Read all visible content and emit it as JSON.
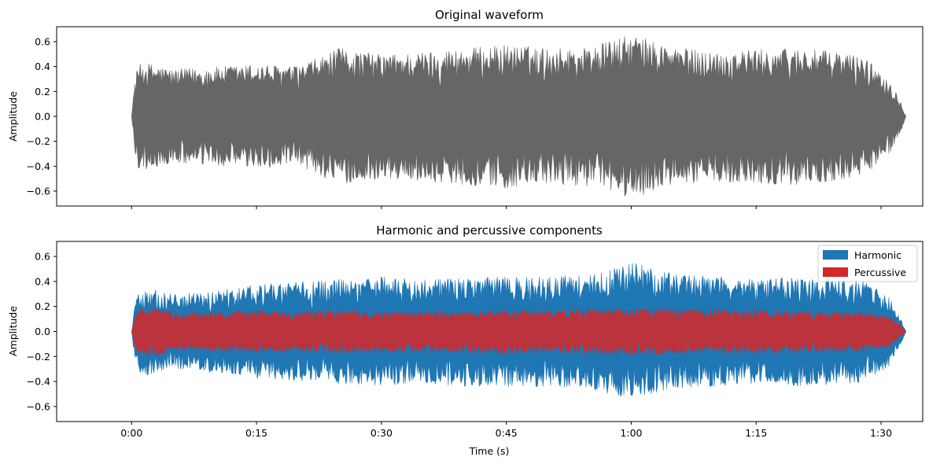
{
  "chart_data": [
    {
      "type": "area",
      "title": "Original waveform",
      "xlabel": "",
      "ylabel": "Amplitude",
      "ylim": [
        -0.72,
        0.72
      ],
      "xlim": [
        -9,
        95
      ],
      "y_ticks": [
        -0.6,
        -0.4,
        -0.2,
        0.0,
        0.2,
        0.4,
        0.6
      ],
      "y_tick_labels": [
        "−0.6",
        "−0.4",
        "−0.2",
        "0.0",
        "0.2",
        "0.4",
        "0.6"
      ],
      "x_ticks_seconds": [
        0,
        15,
        30,
        45,
        60,
        75,
        90
      ],
      "duration_seconds": 93,
      "grid": false,
      "series": [
        {
          "color": "#666666",
          "envelope": [
            {
              "t": 0.0,
              "amp": 0.0
            },
            {
              "t": 0.4,
              "amp": 0.3
            },
            {
              "t": 0.8,
              "amp": 0.42
            },
            {
              "t": 2.0,
              "amp": 0.43
            },
            {
              "t": 5.0,
              "amp": 0.38
            },
            {
              "t": 10.0,
              "amp": 0.4
            },
            {
              "t": 15.0,
              "amp": 0.42
            },
            {
              "t": 20.0,
              "amp": 0.4
            },
            {
              "t": 25.0,
              "amp": 0.55
            },
            {
              "t": 30.0,
              "amp": 0.5
            },
            {
              "t": 35.0,
              "amp": 0.52
            },
            {
              "t": 40.0,
              "amp": 0.55
            },
            {
              "t": 45.0,
              "amp": 0.58
            },
            {
              "t": 50.0,
              "amp": 0.55
            },
            {
              "t": 55.0,
              "amp": 0.56
            },
            {
              "t": 60.0,
              "amp": 0.66
            },
            {
              "t": 65.0,
              "amp": 0.56
            },
            {
              "t": 70.0,
              "amp": 0.52
            },
            {
              "t": 75.0,
              "amp": 0.54
            },
            {
              "t": 80.0,
              "amp": 0.55
            },
            {
              "t": 85.0,
              "amp": 0.52
            },
            {
              "t": 88.0,
              "amp": 0.48
            },
            {
              "t": 91.0,
              "amp": 0.3
            },
            {
              "t": 92.5,
              "amp": 0.1
            },
            {
              "t": 93.0,
              "amp": 0.0
            }
          ]
        }
      ]
    },
    {
      "type": "area",
      "title": "Harmonic and percussive components",
      "xlabel": "Time (s)",
      "ylabel": "Amplitude",
      "ylim": [
        -0.72,
        0.72
      ],
      "xlim": [
        -9,
        95
      ],
      "y_ticks": [
        -0.6,
        -0.4,
        -0.2,
        0.0,
        0.2,
        0.4,
        0.6
      ],
      "y_tick_labels": [
        "−0.6",
        "−0.4",
        "−0.2",
        "0.0",
        "0.2",
        "0.4",
        "0.6"
      ],
      "x_ticks_seconds": [
        0,
        15,
        30,
        45,
        60,
        75,
        90
      ],
      "x_tick_labels": [
        "0:00",
        "0:15",
        "0:30",
        "0:45",
        "1:00",
        "1:15",
        "1:30"
      ],
      "duration_seconds": 93,
      "grid": false,
      "legend_position": "top-right",
      "series": [
        {
          "name": "Harmonic",
          "color": "#1f77b4",
          "envelope": [
            {
              "t": 0.0,
              "amp": 0.0
            },
            {
              "t": 0.4,
              "amp": 0.25
            },
            {
              "t": 0.8,
              "amp": 0.33
            },
            {
              "t": 2.0,
              "amp": 0.35
            },
            {
              "t": 5.0,
              "amp": 0.3
            },
            {
              "t": 10.0,
              "amp": 0.33
            },
            {
              "t": 15.0,
              "amp": 0.38
            },
            {
              "t": 20.0,
              "amp": 0.4
            },
            {
              "t": 25.0,
              "amp": 0.42
            },
            {
              "t": 30.0,
              "amp": 0.44
            },
            {
              "t": 35.0,
              "amp": 0.42
            },
            {
              "t": 40.0,
              "amp": 0.44
            },
            {
              "t": 45.0,
              "amp": 0.45
            },
            {
              "t": 50.0,
              "amp": 0.44
            },
            {
              "t": 55.0,
              "amp": 0.46
            },
            {
              "t": 60.0,
              "amp": 0.56
            },
            {
              "t": 65.0,
              "amp": 0.46
            },
            {
              "t": 70.0,
              "amp": 0.44
            },
            {
              "t": 75.0,
              "amp": 0.42
            },
            {
              "t": 80.0,
              "amp": 0.44
            },
            {
              "t": 85.0,
              "amp": 0.43
            },
            {
              "t": 88.0,
              "amp": 0.4
            },
            {
              "t": 91.0,
              "amp": 0.28
            },
            {
              "t": 92.5,
              "amp": 0.08
            },
            {
              "t": 93.0,
              "amp": 0.0
            }
          ]
        },
        {
          "name": "Percussive",
          "color": "#d62728",
          "envelope": [
            {
              "t": 0.0,
              "amp": 0.0
            },
            {
              "t": 0.5,
              "amp": 0.15
            },
            {
              "t": 1.0,
              "amp": 0.18
            },
            {
              "t": 3.0,
              "amp": 0.2
            },
            {
              "t": 5.0,
              "amp": 0.15
            },
            {
              "t": 10.0,
              "amp": 0.16
            },
            {
              "t": 15.0,
              "amp": 0.17
            },
            {
              "t": 20.0,
              "amp": 0.16
            },
            {
              "t": 25.0,
              "amp": 0.18
            },
            {
              "t": 30.0,
              "amp": 0.17
            },
            {
              "t": 35.0,
              "amp": 0.16
            },
            {
              "t": 40.0,
              "amp": 0.17
            },
            {
              "t": 45.0,
              "amp": 0.18
            },
            {
              "t": 50.0,
              "amp": 0.17
            },
            {
              "t": 55.0,
              "amp": 0.18
            },
            {
              "t": 60.0,
              "amp": 0.19
            },
            {
              "t": 65.0,
              "amp": 0.18
            },
            {
              "t": 70.0,
              "amp": 0.17
            },
            {
              "t": 75.0,
              "amp": 0.18
            },
            {
              "t": 80.0,
              "amp": 0.17
            },
            {
              "t": 85.0,
              "amp": 0.16
            },
            {
              "t": 88.0,
              "amp": 0.16
            },
            {
              "t": 91.0,
              "amp": 0.12
            },
            {
              "t": 92.5,
              "amp": 0.04
            },
            {
              "t": 93.0,
              "amp": 0.0
            }
          ]
        }
      ]
    }
  ]
}
